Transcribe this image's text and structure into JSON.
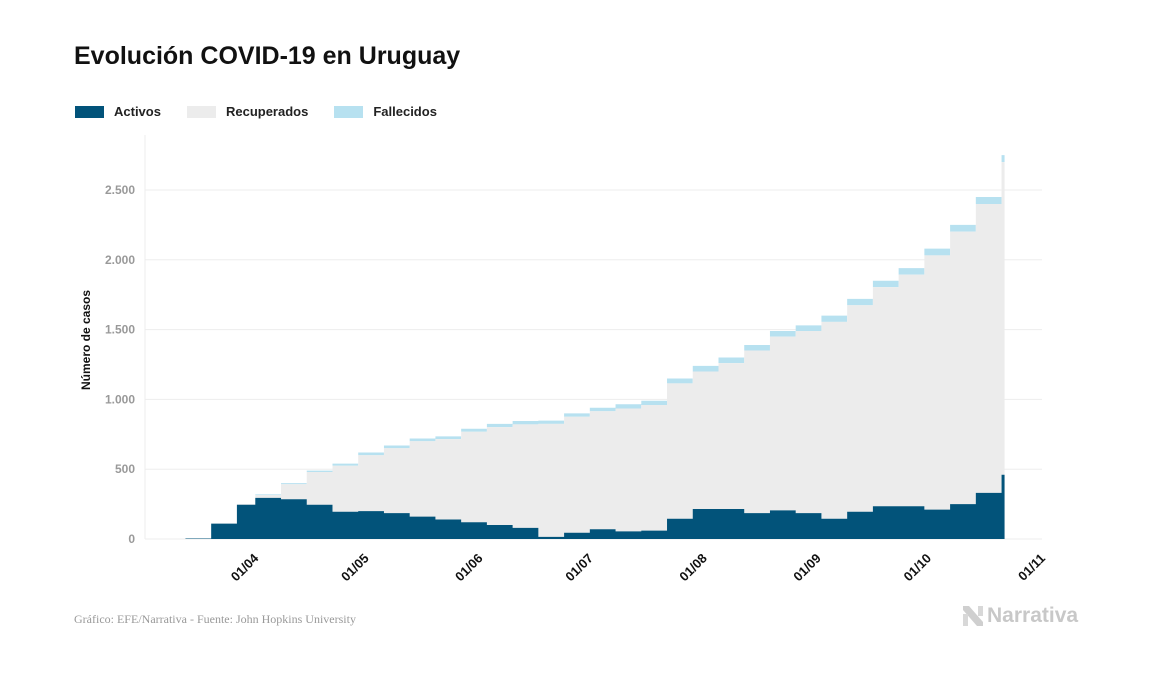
{
  "title": "Evolución COVID-19 en Uruguay",
  "source": "Gráfico: EFE/Narrativa - Fuente: John Hopkins University",
  "logo_text": "Narrativa",
  "colors": {
    "activos": "#02537a",
    "recuperados": "#ececec",
    "fallecidos": "#b7e1f0",
    "grid": "#ededed",
    "tick": "#999999"
  },
  "chart_data": {
    "type": "area",
    "stacked": true,
    "xlabel": "",
    "ylabel": "Número de casos",
    "xlim": [
      "2020-03-02",
      "2020-11-01"
    ],
    "ylim": [
      0,
      2750
    ],
    "yticks": [
      0,
      500,
      1000,
      1500,
      2000,
      2500
    ],
    "ytick_labels": [
      "0",
      "500",
      "1.000",
      "1.500",
      "2.000",
      "2.500"
    ],
    "xticks": [
      "2020-04-01",
      "2020-05-01",
      "2020-06-01",
      "2020-07-01",
      "2020-08-01",
      "2020-09-01",
      "2020-10-01",
      "2020-11-01"
    ],
    "xtick_labels": [
      "01/04",
      "01/05",
      "01/06",
      "01/07",
      "01/08",
      "01/09",
      "01/10",
      "01/11"
    ],
    "grid": true,
    "legend_position": "top-left",
    "x": [
      "2020-03-13",
      "2020-03-20",
      "2020-03-27",
      "2020-04-01",
      "2020-04-08",
      "2020-04-15",
      "2020-04-22",
      "2020-04-29",
      "2020-05-06",
      "2020-05-13",
      "2020-05-20",
      "2020-05-27",
      "2020-06-03",
      "2020-06-10",
      "2020-06-17",
      "2020-06-24",
      "2020-07-01",
      "2020-07-08",
      "2020-07-15",
      "2020-07-22",
      "2020-07-29",
      "2020-08-05",
      "2020-08-12",
      "2020-08-19",
      "2020-08-26",
      "2020-09-02",
      "2020-09-09",
      "2020-09-16",
      "2020-09-23",
      "2020-09-30",
      "2020-10-07",
      "2020-10-14",
      "2020-10-21"
    ],
    "series": [
      {
        "name": "Activos",
        "values": [
          4,
          110,
          245,
          295,
          285,
          245,
          195,
          200,
          185,
          160,
          140,
          120,
          100,
          80,
          15,
          45,
          70,
          55,
          60,
          145,
          215,
          215,
          185,
          205,
          185,
          145,
          195,
          235,
          235,
          210,
          250,
          330,
          460
        ]
      },
      {
        "name": "Recuperados",
        "values": [
          0,
          0,
          5,
          18,
          107,
          235,
          330,
          400,
          465,
          540,
          575,
          648,
          701,
          741,
          810,
          831,
          845,
          880,
          900,
          970,
          985,
          1045,
          1165,
          1245,
          1305,
          1410,
          1479,
          1569,
          1659,
          1822,
          1952,
          2070,
          2240
        ]
      },
      {
        "name": "Fallecidos",
        "values": [
          0,
          0,
          0,
          7,
          8,
          10,
          15,
          20,
          20,
          20,
          20,
          22,
          24,
          24,
          23,
          24,
          25,
          30,
          30,
          35,
          40,
          40,
          40,
          40,
          40,
          45,
          46,
          46,
          46,
          48,
          48,
          50,
          50
        ]
      }
    ]
  }
}
